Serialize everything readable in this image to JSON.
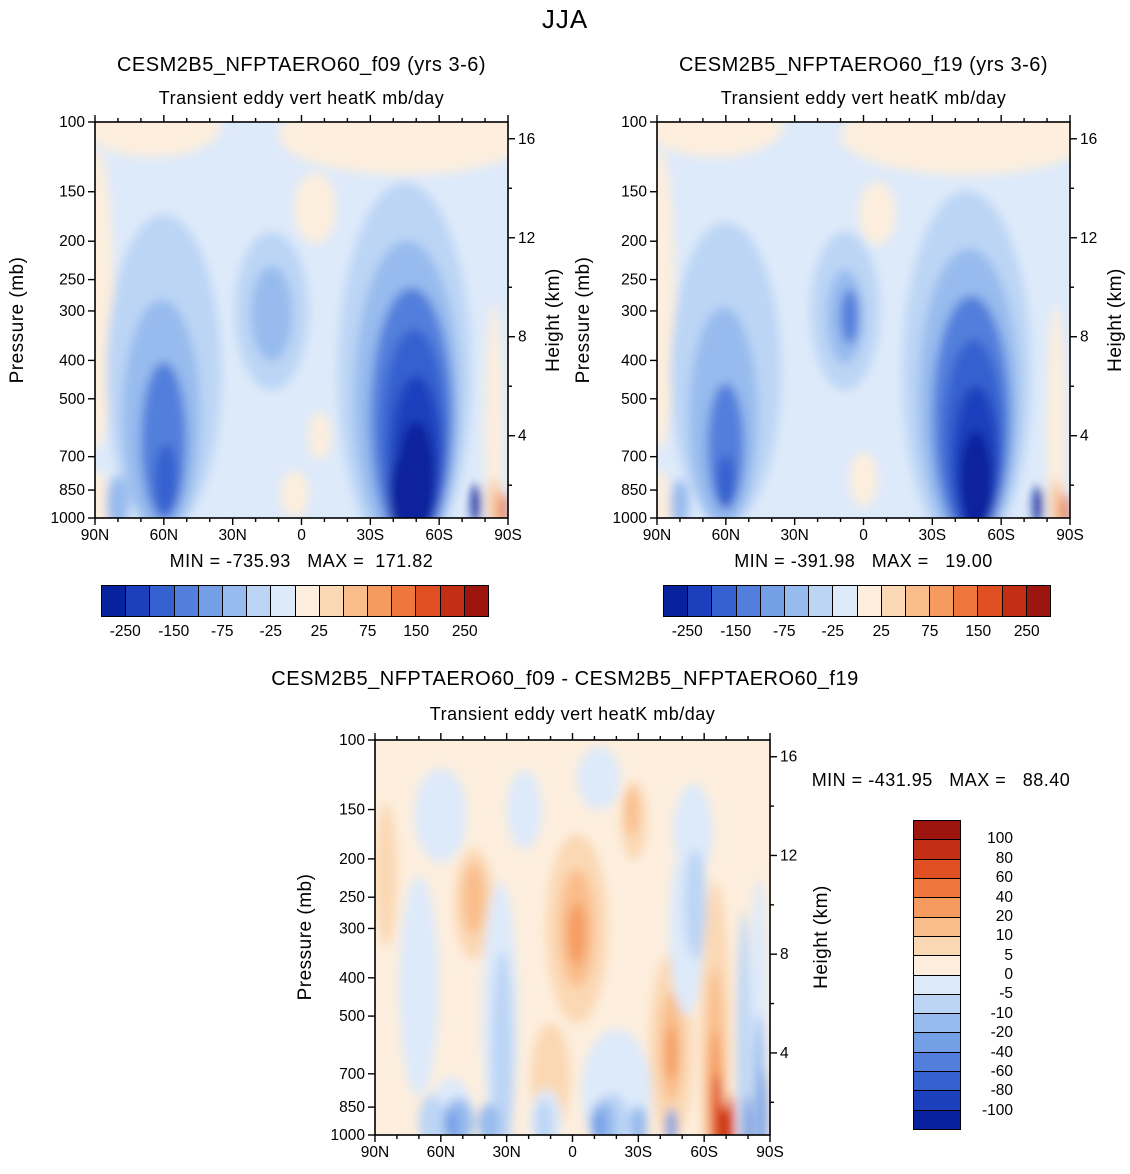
{
  "figure_title": "JJA",
  "palette": {
    "name": "blue-red-diverging-16",
    "colors": [
      "#08219c",
      "#1b3fbd",
      "#3560cf",
      "#527fdc",
      "#749ee6",
      "#97bbee",
      "#bcd5f5",
      "#ddeafa",
      "#fdeedd",
      "#fbd8b4",
      "#f9bd8b",
      "#f59b60",
      "#ef763c",
      "#e04f22",
      "#c22f14",
      "#9c150e"
    ]
  },
  "chart_data": [
    {
      "type": "heatmap",
      "title": "CESM2B5_NFPTAERO60_f09 (yrs 3-6)",
      "subtitle": "Transient eddy vert heatK mb/day",
      "units": "mb/day",
      "ylabel": "Pressure (mb)",
      "y2label": "Height (km)",
      "y_scale": "log",
      "y_ticks_mb": [
        100,
        150,
        200,
        250,
        300,
        400,
        500,
        700,
        850,
        1000
      ],
      "y2_ticks_km": [
        16,
        12,
        8,
        4
      ],
      "xlabel_ticks": [
        "90N",
        "60N",
        "30N",
        "0",
        "30S",
        "60S",
        "90S"
      ],
      "x_ticks_deg": [
        90,
        60,
        30,
        0,
        -30,
        -60,
        -90
      ],
      "min": -735.93,
      "max": 171.82,
      "stats_text": "MIN = -735.93   MAX =  171.82",
      "levels": [
        -250,
        -200,
        -150,
        -100,
        -75,
        -50,
        -25,
        0,
        25,
        50,
        75,
        100,
        150,
        200,
        250
      ],
      "base_value": -12,
      "features": [
        {
          "lat": 65,
          "p": 102,
          "rlat": 30,
          "rp": 0.08,
          "v": 10
        },
        {
          "lat": -45,
          "p": 108,
          "rlat": 55,
          "rp": 0.1,
          "v": 10
        },
        {
          "lat": 89,
          "p": 280,
          "rlat": 7,
          "rp": 0.38,
          "v": 10
        },
        {
          "lat": 89,
          "p": 950,
          "rlat": 5,
          "rp": 0.1,
          "v": 10
        },
        {
          "lat": -6,
          "p": 165,
          "rlat": 9,
          "rp": 0.09,
          "v": 10
        },
        {
          "lat": -8,
          "p": 620,
          "rlat": 5,
          "rp": 0.06,
          "v": 10
        },
        {
          "lat": 3,
          "p": 870,
          "rlat": 6,
          "rp": 0.06,
          "v": 10
        },
        {
          "lat": -84,
          "p": 600,
          "rlat": 4,
          "rp": 0.32,
          "v": 10
        },
        {
          "lat": 60,
          "p": 430,
          "rlat": 25,
          "rp": 0.4,
          "v": -35
        },
        {
          "lat": -45,
          "p": 430,
          "rlat": 29,
          "rp": 0.48,
          "v": -35
        },
        {
          "lat": 13,
          "p": 300,
          "rlat": 16,
          "rp": 0.2,
          "v": -35
        },
        {
          "lat": 61,
          "p": 560,
          "rlat": 17,
          "rp": 0.3,
          "v": -60
        },
        {
          "lat": 13,
          "p": 305,
          "rlat": 9,
          "rp": 0.12,
          "v": -60
        },
        {
          "lat": -46,
          "p": 500,
          "rlat": 23,
          "rp": 0.4,
          "v": -60
        },
        {
          "lat": 80,
          "p": 920,
          "rlat": 5,
          "rp": 0.07,
          "v": -60
        },
        {
          "lat": 60,
          "p": 640,
          "rlat": 10,
          "rp": 0.2,
          "v": -110
        },
        {
          "lat": -48,
          "p": 560,
          "rlat": 18,
          "rp": 0.33,
          "v": -110
        },
        {
          "lat": 59,
          "p": 800,
          "rlat": 5,
          "rp": 0.09,
          "v": -170
        },
        {
          "lat": -49,
          "p": 620,
          "rlat": 14,
          "rp": 0.27,
          "v": -170
        },
        {
          "lat": -50,
          "p": 710,
          "rlat": 11,
          "rp": 0.21,
          "v": -220
        },
        {
          "lat": -50,
          "p": 800,
          "rlat": 8,
          "rp": 0.15,
          "v": -270
        },
        {
          "lat": -43,
          "p": 870,
          "rlat": 5,
          "rp": 0.09,
          "v": -270
        },
        {
          "lat": -76,
          "p": 920,
          "rlat": 2,
          "rp": 0.05,
          "v": -270
        },
        {
          "lat": -84,
          "p": 930,
          "rlat": 2,
          "rp": 0.07,
          "v": 60
        },
        {
          "lat": -88,
          "p": 960,
          "rlat": 1.5,
          "rp": 0.05,
          "v": 160
        }
      ]
    },
    {
      "type": "heatmap",
      "title": "CESM2B5_NFPTAERO60_f19 (yrs 3-6)",
      "subtitle": "Transient eddy vert heatK mb/day",
      "units": "mb/day",
      "ylabel": "Pressure (mb)",
      "y2label": "Height (km)",
      "y_scale": "log",
      "y_ticks_mb": [
        100,
        150,
        200,
        250,
        300,
        400,
        500,
        700,
        850,
        1000
      ],
      "y2_ticks_km": [
        16,
        12,
        8,
        4
      ],
      "xlabel_ticks": [
        "90N",
        "60N",
        "30N",
        "0",
        "30S",
        "60S",
        "90S"
      ],
      "x_ticks_deg": [
        90,
        60,
        30,
        0,
        -30,
        -60,
        -90
      ],
      "min": -391.98,
      "max": 19.0,
      "stats_text": "MIN = -391.98   MAX =   19.00",
      "levels": [
        -250,
        -200,
        -150,
        -100,
        -75,
        -50,
        -25,
        0,
        25,
        50,
        75,
        100,
        150,
        200,
        250
      ],
      "base_value": -12,
      "features": [
        {
          "lat": 65,
          "p": 102,
          "rlat": 30,
          "rp": 0.08,
          "v": 10
        },
        {
          "lat": -45,
          "p": 108,
          "rlat": 55,
          "rp": 0.1,
          "v": 10
        },
        {
          "lat": 89,
          "p": 280,
          "rlat": 7,
          "rp": 0.38,
          "v": 10
        },
        {
          "lat": 89,
          "p": 950,
          "rlat": 5,
          "rp": 0.1,
          "v": 10
        },
        {
          "lat": -6,
          "p": 170,
          "rlat": 8,
          "rp": 0.08,
          "v": 10
        },
        {
          "lat": 0,
          "p": 800,
          "rlat": 6,
          "rp": 0.07,
          "v": 10
        },
        {
          "lat": -84,
          "p": 600,
          "rlat": 4,
          "rp": 0.32,
          "v": 10
        },
        {
          "lat": 60,
          "p": 430,
          "rlat": 24,
          "rp": 0.38,
          "v": -35
        },
        {
          "lat": -45,
          "p": 430,
          "rlat": 28,
          "rp": 0.46,
          "v": -35
        },
        {
          "lat": 8,
          "p": 300,
          "rlat": 15,
          "rp": 0.2,
          "v": -35
        },
        {
          "lat": 61,
          "p": 560,
          "rlat": 15,
          "rp": 0.28,
          "v": -60
        },
        {
          "lat": 8,
          "p": 310,
          "rlat": 8,
          "rp": 0.12,
          "v": -60
        },
        {
          "lat": -46,
          "p": 500,
          "rlat": 22,
          "rp": 0.38,
          "v": -60
        },
        {
          "lat": 80,
          "p": 920,
          "rlat": 4,
          "rp": 0.06,
          "v": -60
        },
        {
          "lat": 60,
          "p": 660,
          "rlat": 8,
          "rp": 0.16,
          "v": -110
        },
        {
          "lat": 6,
          "p": 310,
          "rlat": 4,
          "rp": 0.07,
          "v": -110
        },
        {
          "lat": -47,
          "p": 560,
          "rlat": 17,
          "rp": 0.31,
          "v": -110
        },
        {
          "lat": 60,
          "p": 810,
          "rlat": 4,
          "rp": 0.07,
          "v": -170
        },
        {
          "lat": -48,
          "p": 630,
          "rlat": 13,
          "rp": 0.25,
          "v": -170
        },
        {
          "lat": -49,
          "p": 720,
          "rlat": 10,
          "rp": 0.19,
          "v": -220
        },
        {
          "lat": -49,
          "p": 810,
          "rlat": 7,
          "rp": 0.13,
          "v": -270
        },
        {
          "lat": -76,
          "p": 930,
          "rlat": 2,
          "rp": 0.05,
          "v": -270
        },
        {
          "lat": -84,
          "p": 935,
          "rlat": 2,
          "rp": 0.07,
          "v": 60
        },
        {
          "lat": -88,
          "p": 965,
          "rlat": 1.5,
          "rp": 0.05,
          "v": 160
        }
      ]
    },
    {
      "type": "heatmap",
      "title": "CESM2B5_NFPTAERO60_f09 - CESM2B5_NFPTAERO60_f19",
      "subtitle": "Transient eddy vert heatK mb/day",
      "units": "mb/day",
      "ylabel": "Pressure (mb)",
      "y2label": "Height (km)",
      "y_scale": "log",
      "y_ticks_mb": [
        100,
        150,
        200,
        250,
        300,
        400,
        500,
        700,
        850,
        1000
      ],
      "y2_ticks_km": [
        16,
        12,
        8,
        4
      ],
      "xlabel_ticks": [
        "90N",
        "60N",
        "30N",
        "0",
        "30S",
        "60S",
        "90S"
      ],
      "x_ticks_deg": [
        90,
        60,
        30,
        0,
        -30,
        -60,
        -90
      ],
      "min": -431.95,
      "max": 88.4,
      "stats_text": "MIN = -431.95   MAX =   88.40",
      "levels": [
        -100,
        -80,
        -60,
        -40,
        -20,
        -10,
        -5,
        0,
        5,
        10,
        20,
        40,
        60,
        80,
        100
      ],
      "base_value": 2,
      "features": [
        {
          "lat": -2,
          "p": 300,
          "rlat": 14,
          "rp": 0.24,
          "v": 7
        },
        {
          "lat": 45,
          "p": 260,
          "rlat": 9,
          "rp": 0.14,
          "v": 7
        },
        {
          "lat": -45,
          "p": 600,
          "rlat": 10,
          "rp": 0.24,
          "v": 7
        },
        {
          "lat": -65,
          "p": 600,
          "rlat": 7,
          "rp": 0.42,
          "v": 7
        },
        {
          "lat": 10,
          "p": 720,
          "rlat": 9,
          "rp": 0.14,
          "v": 7
        },
        {
          "lat": -28,
          "p": 160,
          "rlat": 6,
          "rp": 0.1,
          "v": 7
        },
        {
          "lat": 85,
          "p": 220,
          "rlat": 5,
          "rp": 0.18,
          "v": 7
        },
        {
          "lat": -2,
          "p": 300,
          "rlat": 8,
          "rp": 0.15,
          "v": 15
        },
        {
          "lat": 45,
          "p": 252,
          "rlat": 5,
          "rp": 0.09,
          "v": 15
        },
        {
          "lat": -45,
          "p": 600,
          "rlat": 5,
          "rp": 0.14,
          "v": 15
        },
        {
          "lat": -65,
          "p": 720,
          "rlat": 4,
          "rp": 0.28,
          "v": 15
        },
        {
          "lat": -27,
          "p": 152,
          "rlat": 3,
          "rp": 0.06,
          "v": 15
        },
        {
          "lat": 60,
          "p": 155,
          "rlat": 12,
          "rp": 0.12,
          "v": -2
        },
        {
          "lat": 22,
          "p": 150,
          "rlat": 8,
          "rp": 0.1,
          "v": -2
        },
        {
          "lat": -12,
          "p": 125,
          "rlat": 10,
          "rp": 0.08,
          "v": -2
        },
        {
          "lat": -55,
          "p": 170,
          "rlat": 9,
          "rp": 0.12,
          "v": -2
        },
        {
          "lat": 70,
          "p": 420,
          "rlat": 9,
          "rp": 0.28,
          "v": -2
        },
        {
          "lat": 33,
          "p": 500,
          "rlat": 8,
          "rp": 0.34,
          "v": -2
        },
        {
          "lat": -20,
          "p": 780,
          "rlat": 16,
          "rp": 0.16,
          "v": -2
        },
        {
          "lat": -52,
          "p": 300,
          "rlat": 8,
          "rp": 0.22,
          "v": -2
        },
        {
          "lat": -85,
          "p": 500,
          "rlat": 4,
          "rp": 0.35,
          "v": -2
        },
        {
          "lat": 55,
          "p": 900,
          "rlat": 10,
          "rp": 0.1,
          "v": -2
        },
        {
          "lat": 12,
          "p": 920,
          "rlat": 7,
          "rp": 0.08,
          "v": -2
        },
        {
          "lat": 32,
          "p": 650,
          "rlat": 5,
          "rp": 0.28,
          "v": -7
        },
        {
          "lat": -56,
          "p": 260,
          "rlat": 5,
          "rp": 0.14,
          "v": -7
        },
        {
          "lat": 64,
          "p": 930,
          "rlat": 6,
          "rp": 0.07,
          "v": -7
        },
        {
          "lat": -78,
          "p": 650,
          "rlat": 3,
          "rp": 0.38,
          "v": -7
        },
        {
          "lat": 13,
          "p": 935,
          "rlat": 4,
          "rp": 0.06,
          "v": -7
        },
        {
          "lat": -18,
          "p": 920,
          "rlat": 8,
          "rp": 0.07,
          "v": -7
        },
        {
          "lat": 52,
          "p": 925,
          "rlat": 7,
          "rp": 0.06,
          "v": -15
        },
        {
          "lat": 38,
          "p": 935,
          "rlat": 5,
          "rp": 0.05,
          "v": -15
        },
        {
          "lat": -14,
          "p": 930,
          "rlat": 6,
          "rp": 0.055,
          "v": -15
        },
        {
          "lat": -30,
          "p": 945,
          "rlat": 4,
          "rp": 0.05,
          "v": -15
        },
        {
          "lat": -85,
          "p": 820,
          "rlat": 2.5,
          "rp": 0.22,
          "v": -15
        },
        {
          "lat": 55,
          "p": 945,
          "rlat": 3,
          "rp": 0.04,
          "v": -30
        },
        {
          "lat": -12,
          "p": 950,
          "rlat": 3,
          "rp": 0.04,
          "v": -30
        },
        {
          "lat": -45,
          "p": 950,
          "rlat": 2.5,
          "rp": 0.045,
          "v": -30
        },
        {
          "lat": -87,
          "p": 900,
          "rlat": 1.8,
          "rp": 0.12,
          "v": -30
        },
        {
          "lat": -80,
          "p": 950,
          "rlat": 1.5,
          "rp": 0.08,
          "v": -45
        },
        {
          "lat": -2,
          "p": 310,
          "rlat": 4,
          "rp": 0.08,
          "v": 30
        },
        {
          "lat": -65,
          "p": 820,
          "rlat": 3,
          "rp": 0.18,
          "v": 30
        },
        {
          "lat": -45,
          "p": 620,
          "rlat": 2.5,
          "rp": 0.07,
          "v": 30
        },
        {
          "lat": -66,
          "p": 900,
          "rlat": 2.5,
          "rp": 0.11,
          "v": 60
        },
        {
          "lat": -72,
          "p": 950,
          "rlat": 2,
          "rp": 0.08,
          "v": 60
        },
        {
          "lat": -69,
          "p": 960,
          "rlat": 1.8,
          "rp": 0.055,
          "v": 90
        }
      ]
    }
  ],
  "colorbars": [
    {
      "orientation": "horizontal",
      "labels": [
        "-250",
        "-150",
        "-75",
        "-25",
        "25",
        "75",
        "150",
        "250"
      ]
    },
    {
      "orientation": "horizontal",
      "labels": [
        "-250",
        "-150",
        "-75",
        "-25",
        "25",
        "75",
        "150",
        "250"
      ]
    },
    {
      "orientation": "vertical",
      "labels": [
        "100",
        "80",
        "60",
        "40",
        "20",
        "10",
        "5",
        "0",
        "-5",
        "-10",
        "-20",
        "-40",
        "-60",
        "-80",
        "-100"
      ]
    }
  ]
}
